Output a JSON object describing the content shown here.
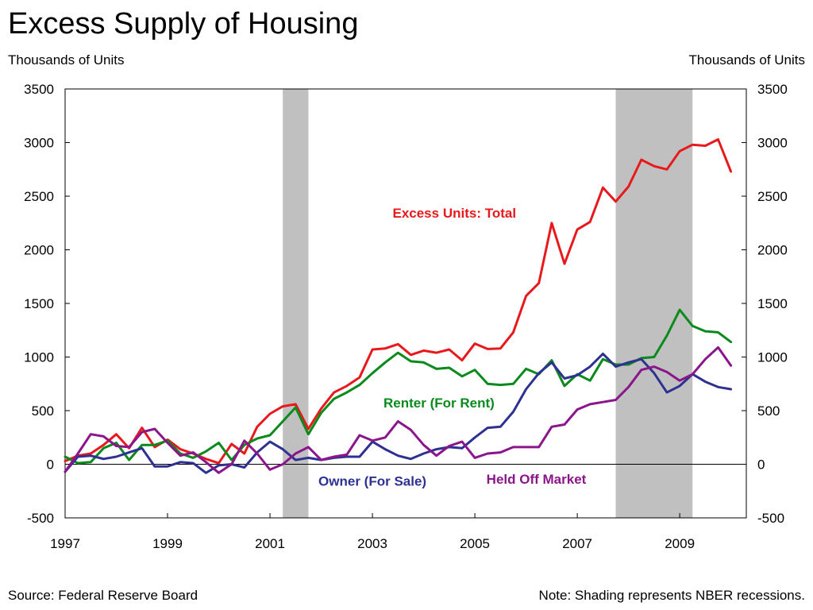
{
  "title": "Excess Supply of Housing",
  "left_unit_label": "Thousands of Units",
  "right_unit_label": "Thousands of Units",
  "source_note": "Source: Federal Reserve Board",
  "shading_note": "Note: Shading represents NBER recessions.",
  "chart_data": {
    "type": "line",
    "xlim": [
      1997,
      2010.3
    ],
    "ylim": [
      -500,
      3500
    ],
    "y_ticks": [
      -500,
      0,
      500,
      1000,
      1500,
      2000,
      2500,
      3000,
      3500
    ],
    "x_ticks": [
      1997,
      1999,
      2001,
      2003,
      2005,
      2007,
      2009
    ],
    "y_tick_labels": [
      "-500",
      "0",
      "500",
      "1000",
      "1500",
      "2000",
      "2500",
      "3000",
      "3500"
    ],
    "x_tick_labels": [
      "1997",
      "1999",
      "2001",
      "2003",
      "2005",
      "2007",
      "2009"
    ],
    "recessions": [
      [
        2001.25,
        2001.75
      ],
      [
        2007.75,
        2009.25
      ]
    ],
    "grid": false,
    "x": [
      1997.0,
      1997.25,
      1997.5,
      1997.75,
      1998.0,
      1998.25,
      1998.5,
      1998.75,
      1999.0,
      1999.25,
      1999.5,
      1999.75,
      2000.0,
      2000.25,
      2000.5,
      2000.75,
      2001.0,
      2001.25,
      2001.5,
      2001.75,
      2002.0,
      2002.25,
      2002.5,
      2002.75,
      2003.0,
      2003.25,
      2003.5,
      2003.75,
      2004.0,
      2004.25,
      2004.5,
      2004.75,
      2005.0,
      2005.25,
      2005.5,
      2005.75,
      2006.0,
      2006.25,
      2006.5,
      2006.75,
      2007.0,
      2007.25,
      2007.5,
      2007.75,
      2008.0,
      2008.25,
      2008.5,
      2008.75,
      2009.0,
      2009.25,
      2009.5,
      2009.75,
      2010.0
    ],
    "series": [
      {
        "name": "Excess Units: Total",
        "color": "#e8191c",
        "label_pos": [
          2004.6,
          2300
        ],
        "values": [
          30,
          80,
          100,
          180,
          280,
          150,
          340,
          160,
          230,
          140,
          100,
          50,
          10,
          190,
          100,
          350,
          470,
          540,
          560,
          330,
          520,
          670,
          730,
          810,
          1070,
          1080,
          1120,
          1020,
          1060,
          1040,
          1070,
          970,
          1125,
          1075,
          1080,
          1230,
          1570,
          1690,
          2250,
          1870,
          2190,
          2260,
          2580,
          2450,
          2590,
          2840,
          2780,
          2750,
          2920,
          2980,
          2970,
          3030,
          2730
        ]
      },
      {
        "name": "Renter (For Rent)",
        "color": "#0a8a1c",
        "label_pos": [
          2004.3,
          530
        ],
        "values": [
          70,
          10,
          20,
          150,
          200,
          40,
          180,
          180,
          220,
          100,
          60,
          120,
          200,
          40,
          180,
          240,
          270,
          400,
          530,
          280,
          480,
          610,
          670,
          740,
          850,
          950,
          1040,
          960,
          950,
          890,
          900,
          820,
          880,
          750,
          740,
          750,
          890,
          840,
          970,
          730,
          840,
          780,
          980,
          930,
          930,
          990,
          1000,
          1200,
          1440,
          1290,
          1240,
          1230,
          1140
        ]
      },
      {
        "name": "Owner (For Sale)",
        "color": "#2e3192",
        "label_pos": [
          2003.0,
          -200
        ],
        "values": [
          -70,
          70,
          80,
          50,
          70,
          110,
          150,
          -20,
          -20,
          20,
          10,
          -80,
          -10,
          0,
          -30,
          110,
          210,
          140,
          40,
          60,
          40,
          60,
          70,
          70,
          210,
          140,
          80,
          50,
          100,
          140,
          160,
          150,
          250,
          340,
          350,
          490,
          700,
          850,
          950,
          800,
          830,
          910,
          1030,
          910,
          950,
          980,
          850,
          670,
          730,
          840,
          770,
          720,
          700
        ]
      },
      {
        "name": "Held Off Market",
        "color": "#8b168b",
        "label_pos": [
          2006.2,
          -180
        ],
        "values": [
          -70,
          100,
          280,
          260,
          170,
          160,
          300,
          330,
          200,
          80,
          110,
          20,
          -80,
          0,
          220,
          100,
          -50,
          0,
          100,
          160,
          40,
          70,
          90,
          270,
          220,
          250,
          400,
          320,
          180,
          80,
          170,
          210,
          60,
          100,
          110,
          160,
          160,
          160,
          350,
          370,
          510,
          560,
          580,
          600,
          720,
          880,
          910,
          860,
          780,
          840,
          980,
          1090,
          920
        ]
      }
    ]
  }
}
